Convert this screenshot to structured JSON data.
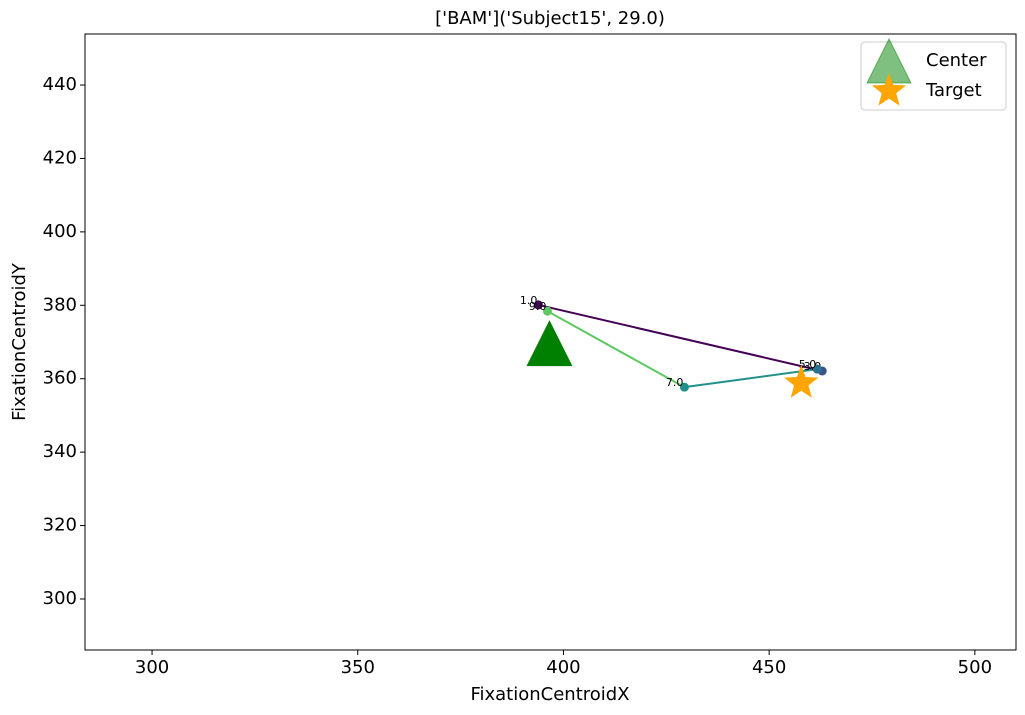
{
  "chart_data": {
    "type": "line",
    "title": "['BAM']('Subject15', 29.0)",
    "x_label": "FixationCentroidX",
    "y_label": "FixationCentroidY",
    "xlim": [
      283.7,
      510.0
    ],
    "ylim": [
      286.1,
      453.9
    ],
    "xticks": [
      300,
      350,
      400,
      450,
      500
    ],
    "yticks": [
      300,
      320,
      340,
      360,
      380,
      400,
      420,
      440
    ],
    "legend": "upper right",
    "series": [
      {
        "x": [
          393.9,
          462.9,
          461.7,
          429.4,
          396.1
        ],
        "y": [
          380.1,
          362.1,
          362.6,
          357.7,
          378.4
        ],
        "point_labels": [
          "1.0",
          "3.0",
          "5.0",
          "7.0",
          "9.0"
        ],
        "colors": [
          "#440154",
          "#3b528b",
          "#2c728e",
          "#21918c",
          "#5ec962"
        ],
        "segment_colors": [
          "#440154",
          "#31688e",
          "#21918c",
          "#5ec962"
        ]
      },
      {
        "name": "Center",
        "marker": "triangle",
        "color": "#008000",
        "x": [
          396.6
        ],
        "y": [
          369.7
        ]
      },
      {
        "name": "Target",
        "marker": "star",
        "color": "#ffa500",
        "x": [
          457.8
        ],
        "y": [
          358.8
        ]
      }
    ]
  }
}
